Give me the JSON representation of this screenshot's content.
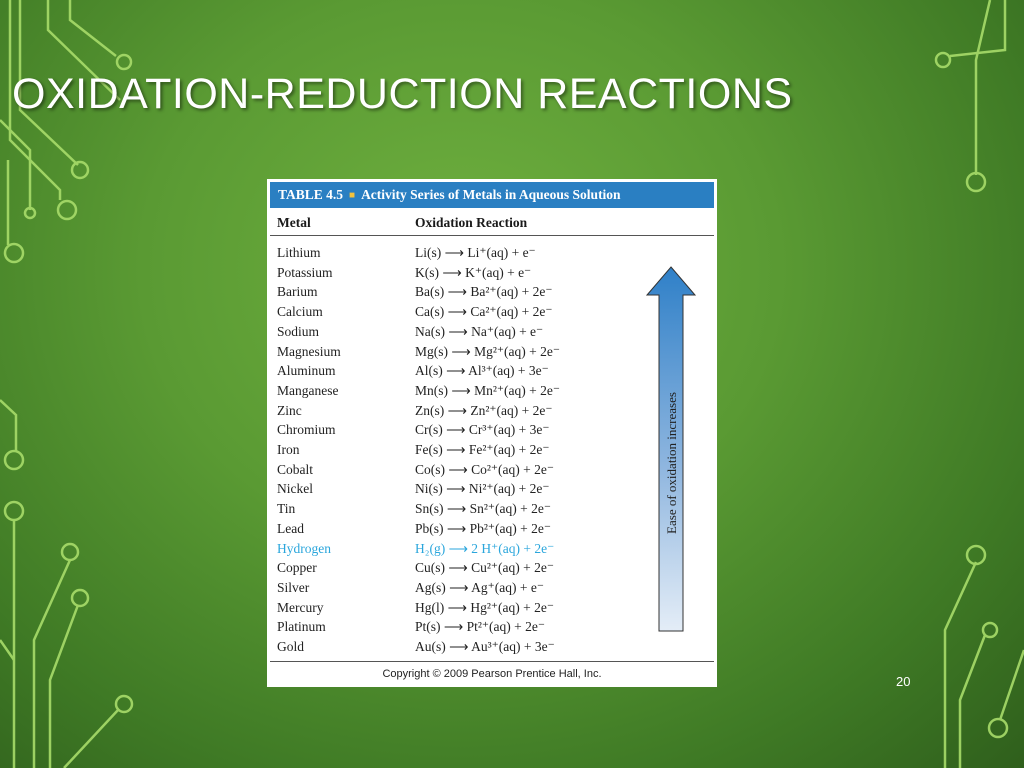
{
  "slide": {
    "title": "OXIDATION-REDUCTION REACTIONS",
    "number": "20"
  },
  "table": {
    "header_label": "TABLE 4.5",
    "header_title": "Activity Series of Metals in Aqueous Solution",
    "col_metal": "Metal",
    "col_reaction": "Oxidation Reaction",
    "arrow_label": "Ease of oxidation increases",
    "copyright": "Copyright © 2009 Pearson Prentice Hall, Inc.",
    "rows": [
      {
        "metal": "Lithium",
        "reaction": "Li(s) ⟶ Li⁺(aq) + e⁻"
      },
      {
        "metal": "Potassium",
        "reaction": "K(s) ⟶ K⁺(aq) + e⁻"
      },
      {
        "metal": "Barium",
        "reaction": "Ba(s) ⟶ Ba²⁺(aq) + 2e⁻"
      },
      {
        "metal": "Calcium",
        "reaction": "Ca(s) ⟶ Ca²⁺(aq) + 2e⁻"
      },
      {
        "metal": "Sodium",
        "reaction": "Na(s) ⟶ Na⁺(aq) + e⁻"
      },
      {
        "metal": "Magnesium",
        "reaction": "Mg(s) ⟶ Mg²⁺(aq) + 2e⁻"
      },
      {
        "metal": "Aluminum",
        "reaction": "Al(s) ⟶ Al³⁺(aq) + 3e⁻"
      },
      {
        "metal": "Manganese",
        "reaction": "Mn(s) ⟶ Mn²⁺(aq) + 2e⁻"
      },
      {
        "metal": "Zinc",
        "reaction": "Zn(s) ⟶ Zn²⁺(aq) + 2e⁻"
      },
      {
        "metal": "Chromium",
        "reaction": "Cr(s) ⟶ Cr³⁺(aq) + 3e⁻"
      },
      {
        "metal": "Iron",
        "reaction": "Fe(s) ⟶ Fe²⁺(aq) + 2e⁻"
      },
      {
        "metal": "Cobalt",
        "reaction": "Co(s) ⟶ Co²⁺(aq) + 2e⁻"
      },
      {
        "metal": "Nickel",
        "reaction": "Ni(s) ⟶ Ni²⁺(aq) + 2e⁻"
      },
      {
        "metal": "Tin",
        "reaction": "Sn(s) ⟶ Sn²⁺(aq) + 2e⁻"
      },
      {
        "metal": "Lead",
        "reaction": "Pb(s) ⟶ Pb²⁺(aq) + 2e⁻"
      },
      {
        "metal": "Hydrogen",
        "reaction": "H₂(g) ⟶ 2 H⁺(aq) + 2e⁻"
      },
      {
        "metal": "Copper",
        "reaction": "Cu(s) ⟶ Cu²⁺(aq) + 2e⁻"
      },
      {
        "metal": "Silver",
        "reaction": "Ag(s) ⟶ Ag⁺(aq) + e⁻"
      },
      {
        "metal": "Mercury",
        "reaction": "Hg(l) ⟶ Hg²⁺(aq) + 2e⁻"
      },
      {
        "metal": "Platinum",
        "reaction": "Pt(s) ⟶ Pt²⁺(aq) + 2e⁻"
      },
      {
        "metal": "Gold",
        "reaction": "Au(s) ⟶ Au³⁺(aq) + 3e⁻"
      }
    ]
  },
  "colors": {
    "header_bg": "#2a7fc2",
    "highlight_text": "#2aa6dc",
    "decor_line": "#a8dc6a"
  }
}
